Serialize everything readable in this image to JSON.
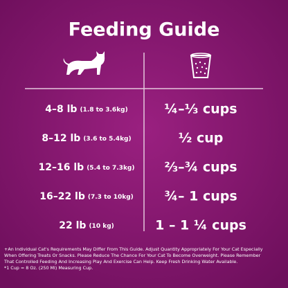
{
  "header": {
    "title": "Feeding Guide"
  },
  "table": {
    "rows": [
      [
        "4–8 lb",
        "(1.8 to 3.6kg)",
        "¼–⅓ cups"
      ],
      [
        "8–12 lb",
        "(3.6 to 5.4kg)",
        "½ cup"
      ],
      [
        "12–16 lb",
        "(5.4 to 7.3kg)",
        "⅔–¾ cups"
      ],
      [
        "16–22 lb",
        "(7.3 to 10kg)",
        "¾– 1 cups"
      ],
      [
        "22 lb",
        "(10 kg)",
        "1 – 1 ¼ cups"
      ]
    ]
  },
  "footnote": {
    "lines": [
      "+An Individual Cat's Requirements May Differ From This Guide.  Adjust Quantity Appropriately For Your Cat Especially",
      "When Offering Treats Or Snacks.  Please Reduce The Chance For Your Cat To Become Overweight.  Please Remember",
      "That Controlled Feeding And Increasing Play And Exercise Can Help.  Keep Fresh Drinking Water Available.",
      "*1 Cup = 8 Oz. (250 Ml) Measuring Cup."
    ]
  }
}
